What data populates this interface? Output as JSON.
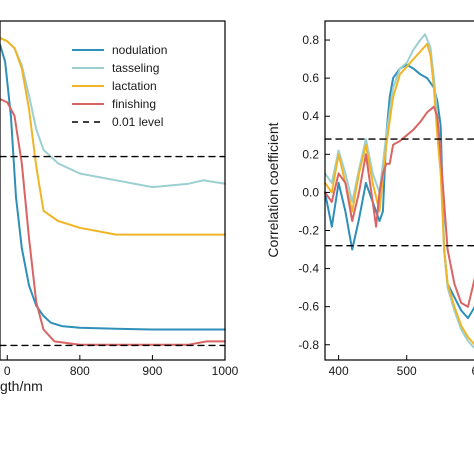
{
  "chart_data": [
    {
      "type": "line",
      "xlabel": "gth/nm",
      "ylabel": "",
      "xlim": [
        690,
        1000
      ],
      "ylim": [
        0,
        1.0
      ],
      "x_ticks": [
        "0",
        "800",
        "900",
        "1000"
      ],
      "legend": {
        "placement": "top-right"
      },
      "series": [
        {
          "name": "nodulation",
          "color": "#2e8fb8",
          "x": [
            690,
            697,
            705,
            712,
            720,
            730,
            740,
            750,
            760,
            775,
            800,
            850,
            900,
            950,
            1000
          ],
          "y": [
            0.93,
            0.88,
            0.72,
            0.48,
            0.33,
            0.22,
            0.16,
            0.13,
            0.11,
            0.1,
            0.095,
            0.092,
            0.09,
            0.09,
            0.09
          ]
        },
        {
          "name": "tasseling",
          "color": "#9ccfd1",
          "x": [
            690,
            700,
            710,
            720,
            730,
            740,
            750,
            770,
            800,
            850,
            900,
            950,
            970,
            1000
          ],
          "y": [
            0.95,
            0.94,
            0.92,
            0.87,
            0.78,
            0.68,
            0.62,
            0.58,
            0.55,
            0.53,
            0.51,
            0.52,
            0.53,
            0.52
          ]
        },
        {
          "name": "lactation",
          "color": "#f0b526",
          "x": [
            690,
            700,
            710,
            720,
            730,
            740,
            750,
            770,
            800,
            850,
            900,
            950,
            1000
          ],
          "y": [
            0.95,
            0.94,
            0.92,
            0.86,
            0.74,
            0.57,
            0.44,
            0.41,
            0.39,
            0.37,
            0.37,
            0.37,
            0.37
          ]
        },
        {
          "name": "finishing",
          "color": "#d96464",
          "x": [
            690,
            700,
            710,
            720,
            730,
            740,
            750,
            765,
            800,
            850,
            900,
            950,
            975,
            1000
          ],
          "y": [
            0.77,
            0.76,
            0.72,
            0.58,
            0.36,
            0.17,
            0.09,
            0.055,
            0.045,
            0.045,
            0.045,
            0.045,
            0.055,
            0.055
          ]
        },
        {
          "name": "0.01 level",
          "color": "#000000",
          "dashed": true,
          "x": [
            690,
            1000
          ],
          "y": [
            0.6,
            0.6
          ]
        },
        {
          "name": "0.01 level (lower)",
          "color": "#000000",
          "dashed": true,
          "x": [
            690,
            1000
          ],
          "y": [
            0.043,
            0.043
          ]
        }
      ]
    },
    {
      "type": "line",
      "xlabel": "",
      "ylabel": "Correlation coefficient",
      "xlim": [
        380,
        615
      ],
      "ylim": [
        -0.88,
        0.9
      ],
      "x_ticks": [
        "400",
        "500",
        "6"
      ],
      "y_ticks": [
        "0.8",
        "0.6",
        "0.4",
        "0.2",
        "0.0",
        "-0.2",
        "-0.4",
        "-0.6",
        "-0.8"
      ],
      "series": [
        {
          "name": "nodulation",
          "color": "#2e8fb8",
          "x": [
            380,
            390,
            400,
            410,
            420,
            430,
            440,
            450,
            460,
            465,
            470,
            475,
            480,
            490,
            500,
            510,
            520,
            530,
            540,
            545,
            550,
            555,
            560,
            570,
            580,
            590,
            600,
            610,
            615
          ],
          "y": [
            0.0,
            -0.18,
            0.05,
            -0.1,
            -0.3,
            -0.14,
            0.05,
            -0.05,
            -0.15,
            -0.1,
            0.3,
            0.5,
            0.6,
            0.65,
            0.67,
            0.65,
            0.62,
            0.6,
            0.55,
            0.48,
            0.35,
            -0.3,
            -0.48,
            -0.55,
            -0.62,
            -0.66,
            -0.6,
            -0.62,
            -0.6
          ]
        },
        {
          "name": "tasseling",
          "color": "#9ccfd1",
          "x": [
            380,
            390,
            400,
            410,
            420,
            430,
            440,
            450,
            460,
            470,
            480,
            490,
            500,
            510,
            520,
            527,
            535,
            540,
            545,
            550,
            555,
            560,
            570,
            580,
            590,
            600,
            610,
            615
          ],
          "y": [
            0.1,
            0.05,
            0.22,
            0.1,
            -0.05,
            0.12,
            0.28,
            0.1,
            0.0,
            0.3,
            0.55,
            0.65,
            0.68,
            0.75,
            0.8,
            0.83,
            0.76,
            0.6,
            0.4,
            0.2,
            -0.3,
            -0.5,
            -0.62,
            -0.72,
            -0.78,
            -0.82,
            -0.78,
            -0.75
          ]
        },
        {
          "name": "lactation",
          "color": "#f0b526",
          "x": [
            380,
            390,
            400,
            410,
            420,
            430,
            440,
            450,
            460,
            470,
            480,
            490,
            500,
            510,
            520,
            530,
            535,
            540,
            545,
            550,
            555,
            560,
            570,
            580,
            590,
            600,
            610,
            615
          ],
          "y": [
            0.05,
            0.0,
            0.2,
            0.05,
            -0.1,
            0.1,
            0.25,
            0.05,
            -0.1,
            0.25,
            0.5,
            0.62,
            0.66,
            0.7,
            0.74,
            0.78,
            0.72,
            0.55,
            0.3,
            0.1,
            -0.3,
            -0.48,
            -0.6,
            -0.7,
            -0.76,
            -0.8,
            -0.75,
            -0.72
          ]
        },
        {
          "name": "finishing",
          "color": "#d96464",
          "x": [
            380,
            390,
            400,
            410,
            420,
            430,
            440,
            450,
            455,
            460,
            465,
            470,
            475,
            480,
            490,
            500,
            510,
            520,
            530,
            540,
            545,
            550,
            555,
            560,
            570,
            580,
            590,
            600,
            610,
            615
          ],
          "y": [
            0.0,
            -0.05,
            0.1,
            0.05,
            -0.15,
            0.0,
            0.2,
            -0.05,
            -0.18,
            0.0,
            0.1,
            0.15,
            0.15,
            0.25,
            0.27,
            0.3,
            0.33,
            0.37,
            0.42,
            0.45,
            0.4,
            0.2,
            -0.05,
            -0.3,
            -0.48,
            -0.58,
            -0.6,
            -0.45,
            -0.38,
            -0.4
          ]
        },
        {
          "name": "0.01 level",
          "color": "#000000",
          "dashed": true,
          "x": [
            380,
            615
          ],
          "y": [
            0.28,
            0.28
          ]
        },
        {
          "name": "0.01 level (negative)",
          "color": "#000000",
          "dashed": true,
          "x": [
            380,
            615
          ],
          "y": [
            -0.28,
            -0.28
          ]
        }
      ]
    }
  ],
  "legend_items": [
    {
      "label": "nodulation",
      "color": "#2e8fb8",
      "dashed": false
    },
    {
      "label": "tasseling",
      "color": "#9ccfd1",
      "dashed": false
    },
    {
      "label": "lactation",
      "color": "#f0b526",
      "dashed": false
    },
    {
      "label": "finishing",
      "color": "#d96464",
      "dashed": false
    },
    {
      "label": "0.01 level",
      "color": "#000000",
      "dashed": true
    }
  ]
}
